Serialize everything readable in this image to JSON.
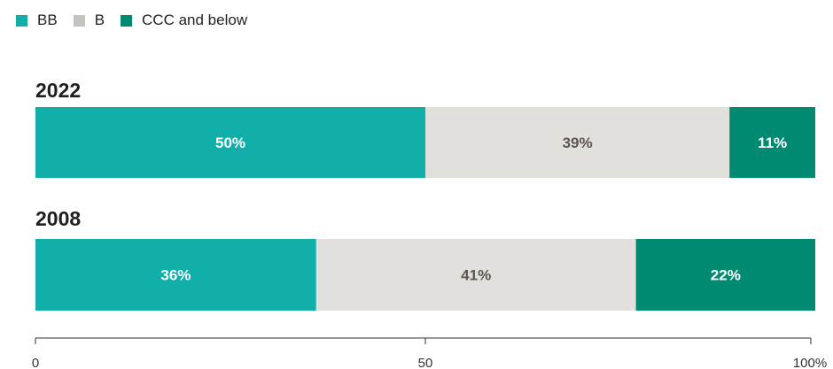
{
  "colors": {
    "bb": "#12aea9",
    "b": "#e2e0dc",
    "ccc": "#008a72",
    "label_dark": "#5e5450",
    "label_light": "#ffffff",
    "axis": "#333333"
  },
  "legend": [
    {
      "label": "BB",
      "color": "#12aea9"
    },
    {
      "label": "B",
      "color": "#c6c3bf"
    },
    {
      "label": "CCC and below",
      "color": "#008a72"
    }
  ],
  "chart_data": {
    "type": "bar",
    "orientation": "horizontal-stacked",
    "categories": [
      "2022",
      "2008"
    ],
    "series": [
      {
        "name": "BB",
        "values": [
          50,
          36
        ],
        "labels": [
          "50%",
          "36%"
        ]
      },
      {
        "name": "B",
        "values": [
          39,
          41
        ],
        "labels": [
          "39%",
          "41%"
        ]
      },
      {
        "name": "CCC and below",
        "values": [
          11,
          22
        ],
        "labels": [
          "11%",
          "22%"
        ]
      }
    ],
    "xlim": [
      0,
      100
    ],
    "x_ticks": [
      0,
      50,
      100
    ],
    "x_tick_labels": [
      "0",
      "50",
      "100%"
    ],
    "legend_position": "top-left",
    "grid": false
  }
}
